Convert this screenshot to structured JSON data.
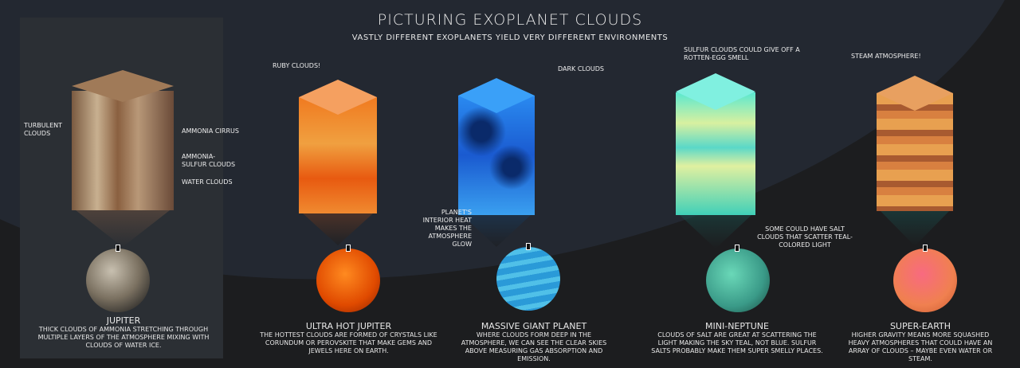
{
  "title": "PICTURING EXOPLANET CLOUDS",
  "subtitle": "VASTLY DIFFERENT EXOPLANETS YIELD VERY DIFFERENT ENVIRONMENTS",
  "planets": [
    {
      "name": "JUPITER",
      "description": "THICK CLOUDS OF AMMONIA STRETCHING THROUGH MULTIPLE LAYERS OF THE ATMOSPHERE MIXING WITH CLOUDS OF WATER ICE.",
      "color": "#8a6a4a"
    },
    {
      "name": "ULTRA HOT JUPITER",
      "description": "THE HOTTEST CLOUDS ARE FORMED OF CRYSTALS LIKE CORUNDUM OR PEROVSKITE THAT MAKE GEMS AND JEWELS HERE ON EARTH.",
      "color": "#f06a10"
    },
    {
      "name": "MASSIVE GIANT PLANET",
      "description": "WHERE CLOUDS FORM DEEP IN THE ATMOSPHERE, WE CAN SEE THE CLEAR SKIES ABOVE MEASURING GAS ABSORPTION AND EMISSION.",
      "color": "#1e7ad8"
    },
    {
      "name": "MINI-NEPTUNE",
      "description": "CLOUDS OF SALT ARE GREAT AT SCATTERING THE LIGHT MAKING THE SKY TEAL, NOT BLUE. SULFUR SALTS PROBABLY MAKE THEM SUPER SMELLY PLACES.",
      "color": "#4cd6b8"
    },
    {
      "name": "SUPER-EARTH",
      "description": "HIGHER GRAVITY MEANS MORE SQUASHED HEAVY ATMOSPHERES THAT COULD HAVE AN ARRAY OF CLOUDS – MAYBE EVEN WATER OR STEAM.",
      "color": "#f07a50"
    }
  ],
  "annotations": {
    "turbulent": "TURBULENT CLOUDS",
    "cirrus": "AMMONIA CIRRUS",
    "ammonia_sulfur": "AMMONIA-SULFUR CLOUDS",
    "water": "WATER CLOUDS",
    "ruby": "RUBY  CLOUDS!",
    "dark": "DARK CLOUDS",
    "interior": "PLANET'S INTERIOR HEAT MAKES THE ATMOSPHERE GLOW",
    "sulfur": "SULFUR CLOUDS COULD GIVE OFF A ROTTEN-EGG SMELL",
    "salt": "SOME COULD HAVE SALT CLOUDS THAT SCATTER TEAL-COLORED LIGHT",
    "steam": "STEAM ATMOSPHERE!"
  }
}
